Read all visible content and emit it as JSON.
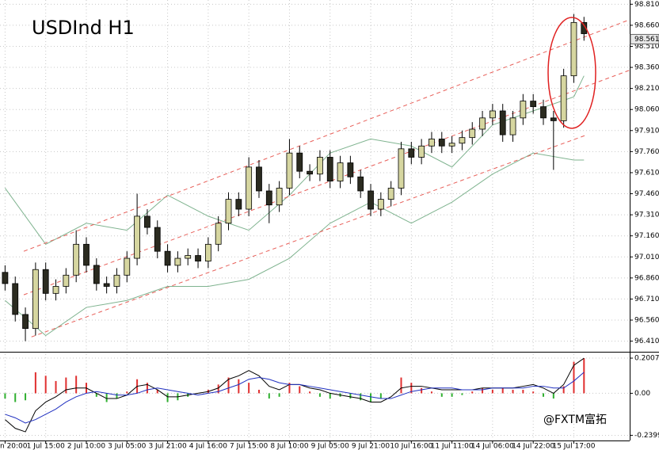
{
  "chart_data": [
    {
      "type": "candlestick",
      "title": "USDInd  H1",
      "open": [
        96.9,
        96.82,
        96.6,
        96.5,
        96.92,
        96.75,
        96.8,
        96.88,
        97.1,
        96.95,
        96.82,
        96.8,
        96.88,
        97.0,
        97.3,
        97.22,
        97.05,
        96.95,
        97.0,
        97.02,
        96.98,
        97.1,
        97.25,
        97.42,
        97.35,
        97.65,
        97.48,
        97.38,
        97.5,
        97.75,
        97.62,
        97.6,
        97.72,
        97.55,
        97.68,
        97.58,
        97.48,
        97.35,
        97.42,
        97.5,
        97.78,
        97.72,
        97.8,
        97.85,
        97.8,
        97.82,
        97.86,
        97.92,
        98.0,
        98.05,
        97.88,
        98.0,
        98.12,
        98.08,
        98.0,
        97.98,
        98.3,
        98.68
      ],
      "high": [
        96.95,
        96.87,
        96.65,
        96.97,
        96.97,
        96.85,
        96.93,
        97.2,
        97.15,
        97.0,
        96.87,
        96.93,
        97.05,
        97.46,
        97.35,
        97.27,
        97.1,
        97.05,
        97.07,
        97.07,
        97.15,
        97.3,
        97.47,
        97.47,
        97.72,
        97.7,
        97.53,
        97.55,
        97.85,
        97.8,
        97.67,
        97.77,
        97.77,
        97.73,
        97.73,
        97.63,
        97.53,
        97.47,
        97.55,
        97.83,
        97.83,
        97.85,
        97.9,
        97.9,
        97.87,
        97.91,
        97.97,
        98.05,
        98.1,
        98.1,
        98.05,
        98.17,
        98.17,
        98.13,
        98.05,
        98.35,
        98.74,
        98.72
      ],
      "low": [
        96.77,
        96.55,
        96.41,
        96.45,
        96.7,
        96.7,
        96.75,
        96.83,
        96.9,
        96.77,
        96.75,
        96.75,
        96.83,
        96.95,
        97.17,
        97.0,
        96.9,
        96.9,
        96.95,
        96.93,
        96.93,
        97.05,
        97.2,
        97.3,
        97.3,
        97.43,
        97.25,
        97.33,
        97.45,
        97.57,
        97.55,
        97.55,
        97.5,
        97.5,
        97.53,
        97.43,
        97.3,
        97.3,
        97.37,
        97.45,
        97.67,
        97.67,
        97.75,
        97.75,
        97.75,
        97.77,
        97.81,
        97.87,
        97.95,
        97.83,
        97.83,
        97.95,
        98.03,
        97.95,
        97.63,
        97.93,
        98.25,
        98.55
      ],
      "close": [
        96.82,
        96.6,
        96.5,
        96.92,
        96.75,
        96.8,
        96.88,
        97.1,
        96.95,
        96.82,
        96.8,
        96.88,
        97.0,
        97.3,
        97.22,
        97.05,
        96.95,
        97.0,
        97.02,
        96.98,
        97.1,
        97.25,
        97.42,
        97.35,
        97.65,
        97.48,
        97.38,
        97.5,
        97.75,
        97.62,
        97.6,
        97.72,
        97.55,
        97.68,
        97.58,
        97.48,
        97.35,
        97.42,
        97.5,
        97.78,
        97.72,
        97.8,
        97.85,
        97.8,
        97.82,
        97.86,
        97.92,
        98.0,
        98.05,
        97.88,
        98.0,
        98.12,
        98.08,
        98.0,
        97.98,
        98.3,
        98.68,
        98.6
      ],
      "up_color": "#d6d6a0",
      "down_color": "#2b2b20",
      "wick_color": "#000000",
      "bands": {
        "color": "#7fb38f",
        "x": [
          0,
          4,
          8,
          12,
          16,
          20,
          24,
          28,
          32,
          36,
          40,
          44,
          48,
          52,
          56,
          57
        ],
        "upper": [
          97.5,
          97.1,
          97.25,
          97.2,
          97.45,
          97.3,
          97.2,
          97.45,
          97.75,
          97.85,
          97.8,
          97.65,
          97.95,
          98.05,
          98.15,
          98.3
        ],
        "lower": [
          96.7,
          96.45,
          96.65,
          96.7,
          96.8,
          96.8,
          96.85,
          97.0,
          97.25,
          97.4,
          97.25,
          97.4,
          97.6,
          97.75,
          97.7,
          97.7
        ]
      },
      "channel": {
        "color": "#e8605a",
        "lines": [
          {
            "x": [
              1.84,
              61.5
            ],
            "values": [
              97.05,
              98.7
            ]
          },
          {
            "x": [
              1.84,
              61.5
            ],
            "values": [
              96.74,
              98.34
            ]
          },
          {
            "x": [
              2.6,
              57.3
            ],
            "values": [
              96.44,
              97.88
            ]
          }
        ]
      },
      "last_price": 98.561,
      "xlim": [
        -0.5,
        61.5
      ],
      "ylim": [
        96.34,
        98.84
      ],
      "yticks": [
        {
          "value": 96.41,
          "label": "96.410"
        },
        {
          "value": 96.56,
          "label": "96.560"
        },
        {
          "value": 96.71,
          "label": "96.710"
        },
        {
          "value": 96.86,
          "label": "96.860"
        },
        {
          "value": 97.01,
          "label": "97.010"
        },
        {
          "value": 97.16,
          "label": "97.160"
        },
        {
          "value": 97.31,
          "label": "97.310"
        },
        {
          "value": 97.46,
          "label": "97.460"
        },
        {
          "value": 97.61,
          "label": "97.610"
        },
        {
          "value": 97.76,
          "label": "97.760"
        },
        {
          "value": 97.91,
          "label": "97.910"
        },
        {
          "value": 98.06,
          "label": "98.060"
        },
        {
          "value": 98.21,
          "label": "98.210"
        },
        {
          "value": 98.36,
          "label": "98.360"
        },
        {
          "value": 98.51,
          "label": "98.510"
        },
        {
          "value": 98.66,
          "label": "98.660"
        },
        {
          "value": 98.81,
          "label": "98.810"
        }
      ],
      "grid": true
    },
    {
      "type": "macd",
      "values": [
        -0.03,
        -0.05,
        -0.04,
        0.12,
        0.1,
        0.07,
        0.09,
        0.1,
        0.06,
        -0.02,
        -0.05,
        -0.03,
        0.01,
        0.08,
        0.06,
        0.02,
        -0.05,
        -0.04,
        -0.02,
        0.0,
        0.02,
        0.05,
        0.09,
        0.08,
        0.06,
        0.02,
        -0.03,
        -0.02,
        0.06,
        0.04,
        0.01,
        -0.02,
        -0.03,
        -0.02,
        -0.03,
        -0.04,
        -0.05,
        -0.03,
        0.0,
        0.09,
        0.06,
        0.03,
        0.01,
        -0.02,
        -0.02,
        -0.01,
        0.01,
        0.03,
        0.02,
        0.03,
        0.02,
        0.02,
        0.01,
        -0.02,
        -0.03,
        0.04,
        0.18,
        0.2
      ],
      "up_color": "#e03030",
      "down_color": "#30b030",
      "lines": [
        {
          "color": "#000000",
          "values": [
            -0.15,
            -0.2,
            -0.22,
            -0.1,
            -0.05,
            -0.02,
            0.02,
            0.03,
            0.03,
            0.0,
            -0.03,
            -0.03,
            -0.01,
            0.04,
            0.05,
            0.02,
            -0.02,
            -0.02,
            -0.01,
            0.0,
            0.01,
            0.03,
            0.08,
            0.1,
            0.13,
            0.1,
            0.04,
            0.02,
            0.05,
            0.05,
            0.03,
            0.02,
            0.0,
            -0.01,
            -0.02,
            -0.03,
            -0.05,
            -0.05,
            -0.02,
            0.03,
            0.04,
            0.04,
            0.03,
            0.02,
            0.02,
            0.02,
            0.02,
            0.03,
            0.03,
            0.03,
            0.03,
            0.04,
            0.05,
            0.03,
            0.0,
            0.05,
            0.16,
            0.2
          ]
        },
        {
          "color": "#2030c0",
          "values": [
            -0.12,
            -0.14,
            -0.17,
            -0.15,
            -0.12,
            -0.09,
            -0.05,
            -0.02,
            0.0,
            0.01,
            0.0,
            -0.01,
            -0.01,
            0.0,
            0.02,
            0.03,
            0.02,
            0.01,
            0.0,
            -0.01,
            0.0,
            0.01,
            0.03,
            0.05,
            0.08,
            0.09,
            0.08,
            0.06,
            0.05,
            0.05,
            0.04,
            0.03,
            0.02,
            0.01,
            0.0,
            -0.01,
            -0.02,
            -0.03,
            -0.03,
            -0.01,
            0.01,
            0.02,
            0.03,
            0.03,
            0.03,
            0.02,
            0.02,
            0.02,
            0.03,
            0.03,
            0.03,
            0.03,
            0.04,
            0.04,
            0.03,
            0.03,
            0.07,
            0.12
          ]
        }
      ],
      "xlim": [
        -0.5,
        61.5
      ],
      "ylim": [
        -0.265,
        0.2235
      ],
      "yticks": [
        0.20073,
        {
          "value": 0,
          "label": "0.00"
        },
        -0.2399
      ],
      "xticks": [
        {
          "value": 0,
          "label": "n 20:00"
        },
        {
          "value": 4,
          "label": "1 Jul 15:00"
        },
        {
          "value": 8,
          "label": "2 Jul 10:00"
        },
        {
          "value": 12,
          "label": "3 Jul 05:00"
        },
        {
          "value": 16,
          "label": "3 Jul 21:00"
        },
        {
          "value": 20,
          "label": "4 Jul 16:00"
        },
        {
          "value": 24,
          "label": "7 Jul 15:00"
        },
        {
          "value": 28,
          "label": "8 Jul 10:00"
        },
        {
          "value": 32,
          "label": "9 Jul 05:00"
        },
        {
          "value": 36,
          "label": "9 Jul 21:00"
        },
        {
          "value": 40,
          "label": "10 Jul 16:00"
        },
        {
          "value": 44,
          "label": "11 Jul 11:00"
        },
        {
          "value": 48,
          "label": "14 Jul 06:00"
        },
        {
          "value": 52,
          "label": "14 Jul 22:00"
        },
        {
          "value": 56,
          "label": "15 Jul 17:00"
        }
      ],
      "grid": true,
      "watermark": "@FXTM富拓"
    }
  ]
}
